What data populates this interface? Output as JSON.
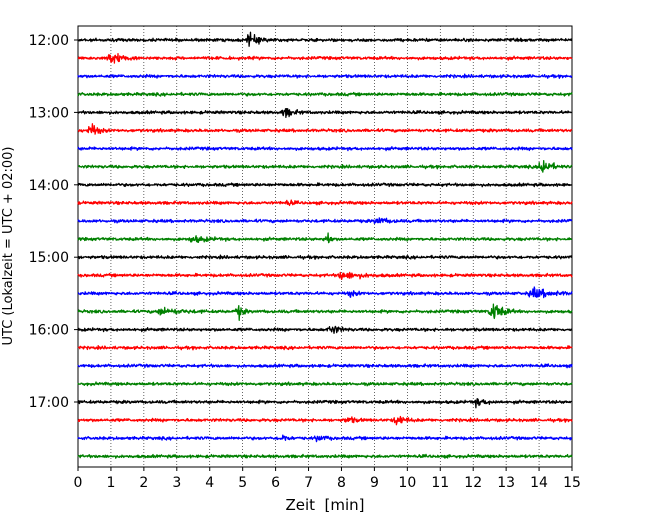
{
  "chart_data": {
    "type": "line",
    "subtype": "helicorder-seismogram",
    "xlabel": "Zeit  [min]",
    "ylabel": "UTC (Lokalzeit = UTC + 02:00)",
    "xlim": [
      0,
      15
    ],
    "x_ticks": [
      0,
      1,
      2,
      3,
      4,
      5,
      6,
      7,
      8,
      9,
      10,
      11,
      12,
      13,
      14,
      15
    ],
    "x_gridlines": "dotted vertical at each minute",
    "y_tick_labels": [
      "12:00",
      "13:00",
      "14:00",
      "15:00",
      "16:00",
      "17:00"
    ],
    "trace_interval_minutes": 15,
    "trace_color_cycle": [
      "#000000",
      "#ff0000",
      "#0000ff",
      "#008000"
    ],
    "traces": [
      {
        "start": "12:00",
        "events": [
          {
            "t": 5.2,
            "amp": 1.8,
            "dur": 0.8
          }
        ]
      },
      {
        "start": "12:15",
        "events": [
          {
            "t": 1.0,
            "amp": 2.2,
            "dur": 0.8
          }
        ]
      },
      {
        "start": "12:30",
        "events": []
      },
      {
        "start": "12:45",
        "events": []
      },
      {
        "start": "13:00",
        "events": [
          {
            "t": 6.3,
            "amp": 1.4,
            "dur": 0.6
          }
        ]
      },
      {
        "start": "13:15",
        "events": [
          {
            "t": 0.4,
            "amp": 2.2,
            "dur": 0.5
          }
        ]
      },
      {
        "start": "13:30",
        "events": []
      },
      {
        "start": "13:45",
        "events": [
          {
            "t": 14.1,
            "amp": 3.0,
            "dur": 0.6
          }
        ]
      },
      {
        "start": "14:00",
        "events": []
      },
      {
        "start": "14:15",
        "events": [
          {
            "t": 6.4,
            "amp": 0.8,
            "dur": 0.3
          }
        ]
      },
      {
        "start": "14:30",
        "events": [
          {
            "t": 9.1,
            "amp": 1.0,
            "dur": 0.8
          }
        ]
      },
      {
        "start": "14:45",
        "events": [
          {
            "t": 3.5,
            "amp": 1.0,
            "dur": 1.0
          },
          {
            "t": 7.6,
            "amp": 2.2,
            "dur": 0.2
          }
        ]
      },
      {
        "start": "15:00",
        "events": []
      },
      {
        "start": "15:15",
        "events": [
          {
            "t": 8.0,
            "amp": 1.2,
            "dur": 1.5
          }
        ]
      },
      {
        "start": "15:30",
        "events": [
          {
            "t": 13.8,
            "amp": 1.6,
            "dur": 1.4
          },
          {
            "t": 8.3,
            "amp": 0.8,
            "dur": 0.4
          }
        ]
      },
      {
        "start": "15:45",
        "events": [
          {
            "t": 12.6,
            "amp": 3.2,
            "dur": 0.7
          },
          {
            "t": 4.9,
            "amp": 2.0,
            "dur": 0.3
          },
          {
            "t": 2.5,
            "amp": 1.0,
            "dur": 1.5
          }
        ]
      },
      {
        "start": "16:00",
        "events": [
          {
            "t": 7.7,
            "amp": 1.5,
            "dur": 0.6
          }
        ]
      },
      {
        "start": "16:15",
        "events": []
      },
      {
        "start": "16:30",
        "events": []
      },
      {
        "start": "16:45",
        "events": []
      },
      {
        "start": "17:00",
        "events": [
          {
            "t": 12.1,
            "amp": 1.0,
            "dur": 0.8
          }
        ]
      },
      {
        "start": "17:15",
        "events": [
          {
            "t": 9.7,
            "amp": 1.6,
            "dur": 0.6
          },
          {
            "t": 8.2,
            "amp": 0.9,
            "dur": 0.6
          }
        ]
      },
      {
        "start": "17:30",
        "events": [
          {
            "t": 6.2,
            "amp": 1.2,
            "dur": 0.4
          },
          {
            "t": 7.3,
            "amp": 0.9,
            "dur": 0.5
          }
        ]
      },
      {
        "start": "17:45",
        "events": []
      }
    ]
  }
}
